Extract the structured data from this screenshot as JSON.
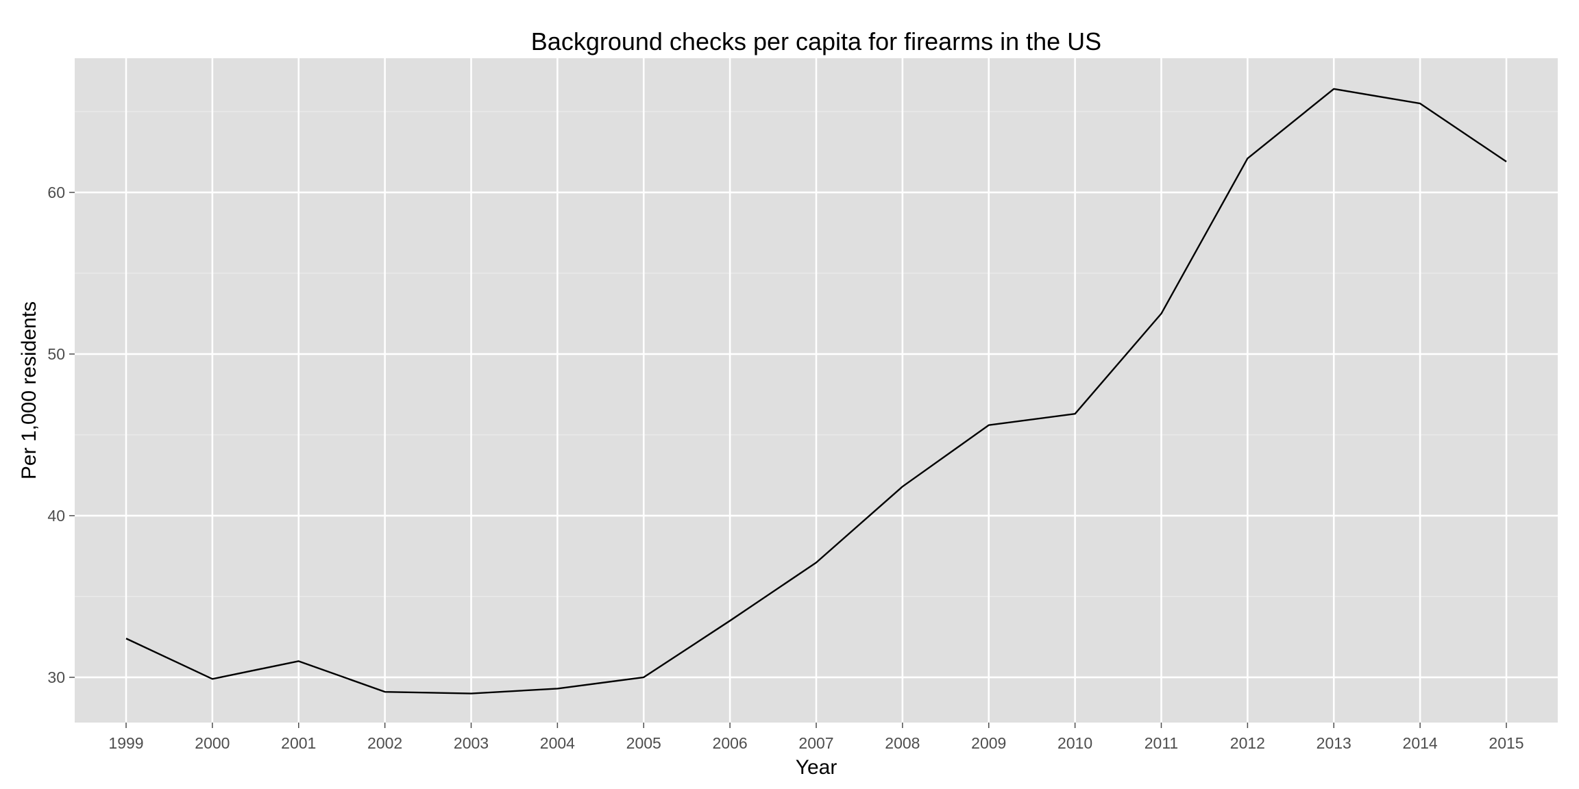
{
  "chart_data": {
    "type": "line",
    "title": "Background checks per capita for firearms in the US",
    "xlabel": "Year",
    "ylabel": "Per 1,000 residents",
    "x": [
      "1999",
      "2000",
      "2001",
      "2002",
      "2003",
      "2004",
      "2005",
      "2006",
      "2007",
      "2008",
      "2009",
      "2010",
      "2011",
      "2012",
      "2013",
      "2014",
      "2015"
    ],
    "series": [
      {
        "values": [
          32.4,
          29.9,
          31.0,
          29.1,
          29.0,
          29.3,
          30.0,
          33.5,
          37.1,
          41.8,
          45.6,
          46.3,
          52.5,
          62.1,
          66.4,
          65.5,
          61.9
        ]
      }
    ],
    "ylim": [
      27.2,
      68.3
    ],
    "y_ticks": [
      30,
      40,
      50,
      60
    ],
    "grid": true,
    "legend": "none",
    "colors": {
      "panel_background": "#dfdfdf",
      "grid_major": "#ffffff",
      "grid_minor": "#ececec",
      "line": "#000000",
      "tick_text": "#4d4d4d",
      "tick_mark": "#4d4d4d",
      "text": "#000000"
    }
  }
}
